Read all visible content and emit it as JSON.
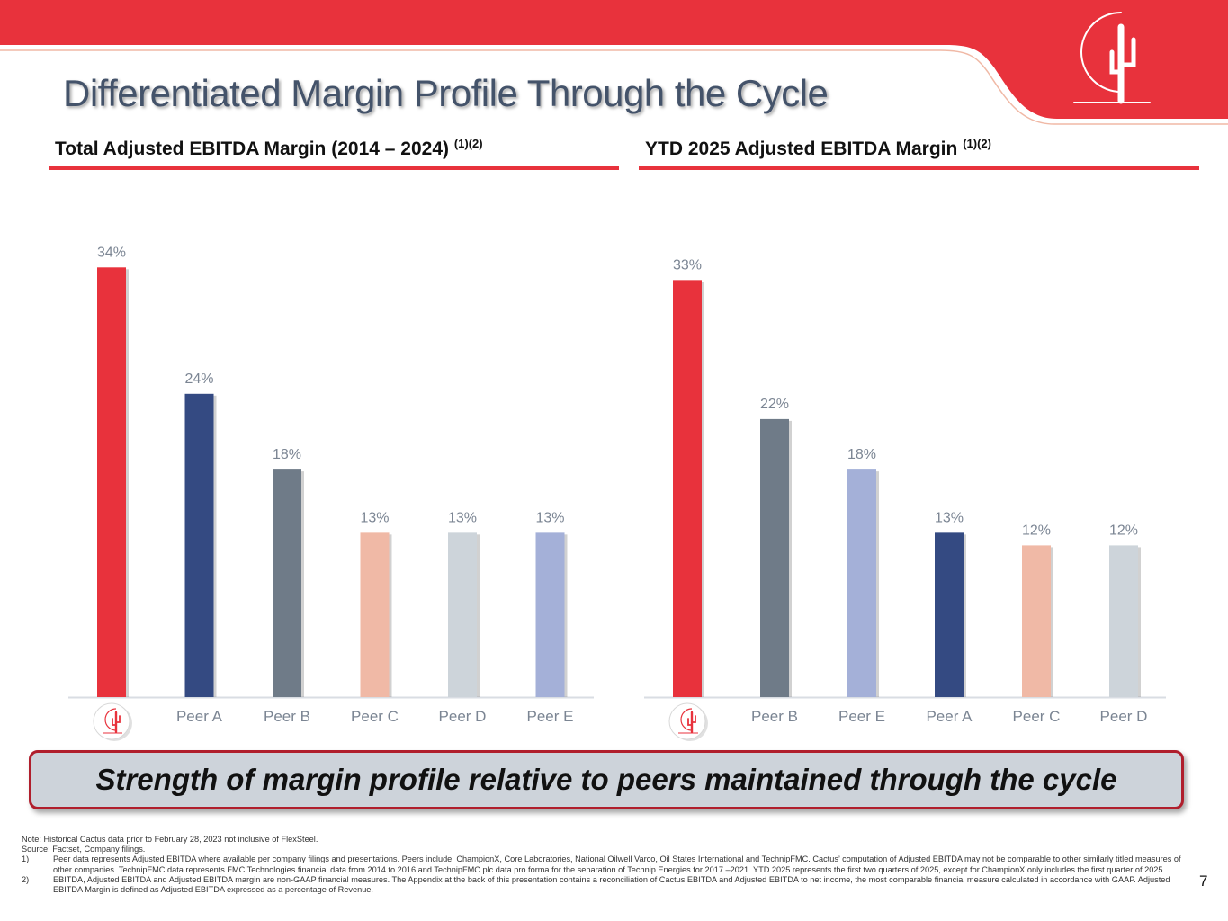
{
  "title": "Differentiated Margin Profile Through the Cycle",
  "colors": {
    "cactus_red": "#e8323c",
    "navy": "#344a82",
    "slate": "#6f7b88",
    "peach": "#f0b9a6",
    "light_gray": "#cdd4da",
    "lavender": "#a4b0d8",
    "axis": "#d9dde3",
    "label": "#7b8593"
  },
  "charts": {
    "left": {
      "heading": "Total Adjusted EBITDA Margin (2014 – 2024)",
      "superscript": "(1)(2)"
    },
    "right": {
      "heading": "YTD 2025 Adjusted EBITDA Margin",
      "superscript": "(1)(2)"
    }
  },
  "chart_data": [
    {
      "type": "bar",
      "title": "Total Adjusted EBITDA Margin (2014 – 2024)",
      "categories": [
        "Cactus (logo)",
        "Peer A",
        "Peer B",
        "Peer C",
        "Peer D",
        "Peer E"
      ],
      "values": [
        34,
        24,
        18,
        13,
        13,
        13
      ],
      "data_labels": [
        "34%",
        "24%",
        "18%",
        "13%",
        "13%",
        "13%"
      ],
      "bar_colors": [
        "#e8323c",
        "#344a82",
        "#6f7b88",
        "#f0b9a6",
        "#cdd4da",
        "#a4b0d8"
      ],
      "first_category_is_logo": true,
      "ylim": [
        0,
        40
      ],
      "xlabel": "",
      "ylabel": ""
    },
    {
      "type": "bar",
      "title": "YTD 2025 Adjusted EBITDA Margin",
      "categories": [
        "Cactus (logo)",
        "Peer B",
        "Peer E",
        "Peer A",
        "Peer C",
        "Peer D"
      ],
      "values": [
        33,
        22,
        18,
        13,
        12,
        12
      ],
      "data_labels": [
        "33%",
        "22%",
        "18%",
        "13%",
        "12%",
        "12%"
      ],
      "bar_colors": [
        "#e8323c",
        "#6f7b88",
        "#a4b0d8",
        "#344a82",
        "#f0b9a6",
        "#cdd4da"
      ],
      "first_category_is_logo": true,
      "ylim": [
        0,
        40
      ],
      "xlabel": "",
      "ylabel": ""
    }
  ],
  "callout": "Strength of margin profile relative to peers maintained through the cycle",
  "notes": {
    "note": "Note: Historical Cactus data prior to February 28, 2023 not inclusive of FlexSteel.",
    "source": "Source: Factset, Company filings.",
    "footnotes": [
      {
        "num": "1)",
        "text": "Peer data represents Adjusted EBITDA where available per company filings and presentations. Peers include: ChampionX, Core Laboratories, National Oilwell Varco, Oil States International and TechnipFMC. Cactus’ computation of Adjusted EBITDA may not be comparable to other similarly titled measures of other companies. TechnipFMC data represents FMC Technologies financial data from 2014 to 2016 and TechnipFMC plc data pro forma for the separation of Technip Energies for 2017 –2021.  YTD 2025 represents the first two quarters of 2025, except for ChampionX only includes the first quarter of 2025."
      },
      {
        "num": "2)",
        "text": "EBITDA, Adjusted EBITDA and Adjusted EBITDA margin are non-GAAP financial measures. The Appendix at the back of this presentation contains a reconciliation of Cactus EBITDA and Adjusted EBITDA to net income, the most comparable financial measure calculated in accordance with GAAP.  Adjusted EBITDA Margin is defined as Adjusted EBITDA expressed as a percentage of Revenue."
      }
    ]
  },
  "page_number": "7"
}
